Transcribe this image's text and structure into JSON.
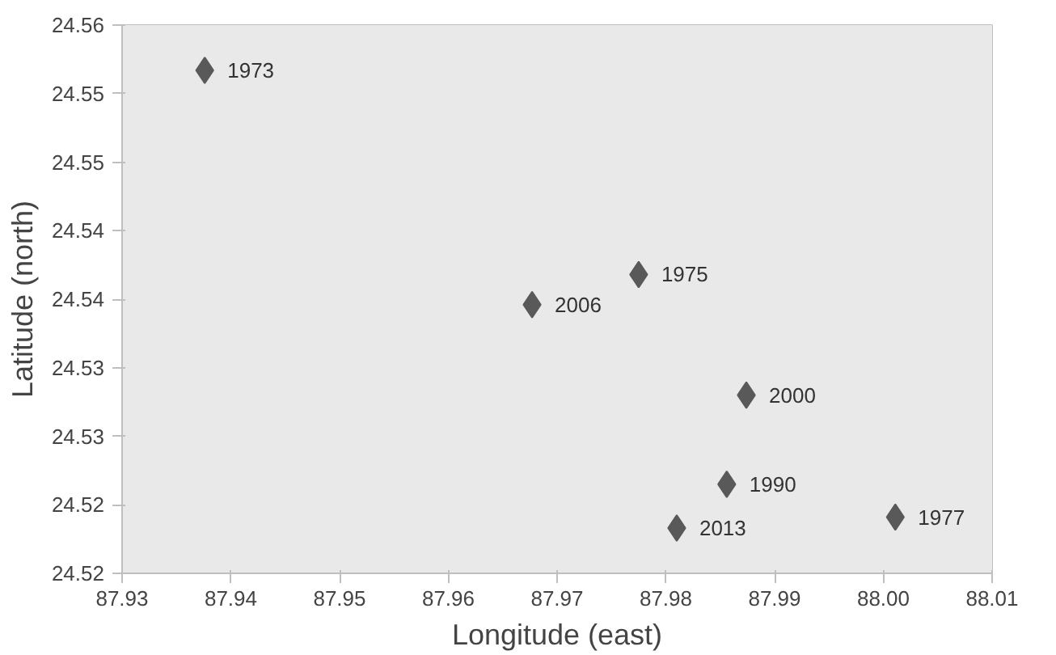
{
  "chart_data": {
    "type": "scatter",
    "xlabel": "Longitude (east)",
    "ylabel": "Latitude (north)",
    "x": [
      87.9376,
      87.9775,
      87.9677,
      87.9874,
      87.9856,
      87.981,
      88.0011
    ],
    "values": [
      24.5567,
      24.5418,
      24.5396,
      24.533,
      24.5265,
      24.5233,
      24.5241
    ],
    "color": "#595959",
    "marker": "diamond",
    "annotations": [
      {
        "text": "1973",
        "x": 87.9376,
        "y": 24.5567
      },
      {
        "text": "1975",
        "x": 87.9775,
        "y": 24.5418
      },
      {
        "text": "2006",
        "x": 87.9677,
        "y": 24.5396
      },
      {
        "text": "2000",
        "x": 87.9874,
        "y": 24.533
      },
      {
        "text": "1990",
        "x": 87.9856,
        "y": 24.5265
      },
      {
        "text": "2013",
        "x": 87.981,
        "y": 24.5233
      },
      {
        "text": "1977",
        "x": 88.0011,
        "y": 24.5241
      }
    ],
    "xlim": [
      87.93,
      88.01
    ],
    "xticks": [
      87.93,
      87.94,
      87.95,
      87.96,
      87.97,
      87.98,
      87.99,
      {
        "value": 88.0,
        "label": "88.00"
      },
      88.01
    ],
    "ylim": [
      24.52,
      24.56
    ],
    "yticks": [
      {
        "value": 24.52,
        "label": "24.52"
      },
      {
        "value": 24.525,
        "label": "24.52"
      },
      {
        "value": 24.53,
        "label": "24.53"
      },
      {
        "value": 24.535,
        "label": "24.53"
      },
      {
        "value": 24.54,
        "label": "24.54"
      },
      {
        "value": 24.545,
        "label": "24.54"
      },
      {
        "value": 24.55,
        "label": "24.55"
      },
      {
        "value": 24.555,
        "label": "24.55"
      },
      {
        "value": 24.56,
        "label": "24.56"
      }
    ]
  }
}
